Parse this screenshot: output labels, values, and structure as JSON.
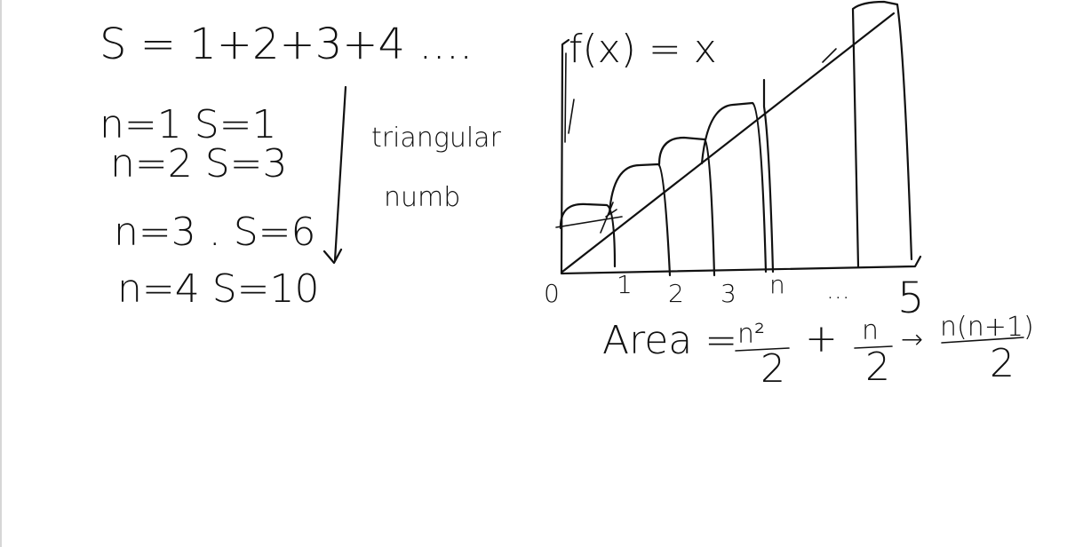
{
  "notes": {
    "series_sum": "S = 1+2+3+4 ....",
    "rows": [
      "n=1   S=1",
      "n=2   S=3",
      "n=3 . S=6",
      "n=4   S=10"
    ],
    "side_note_line1": "triangular",
    "side_note_line2": "numb"
  },
  "graph": {
    "function_label": "f(x) = x",
    "tick_labels": [
      "0",
      "1",
      "2",
      "3",
      "n",
      "...",
      "5"
    ],
    "area_prefix": "Area =",
    "area_term1_num": "n²",
    "area_term1_den": "2",
    "plus": "+",
    "area_term2_num": "n",
    "area_term2_den": "2",
    "arrow": "→",
    "area_result_num": "n(n+1)",
    "area_result_den": "2"
  }
}
